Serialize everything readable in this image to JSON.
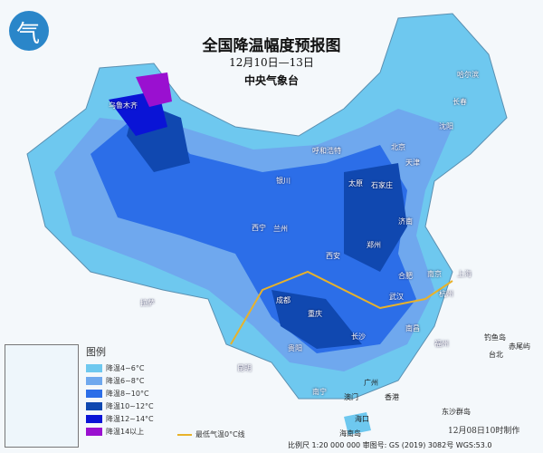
{
  "header": {
    "title": "全国降温幅度预报图",
    "date_range": "12月10日—13日",
    "issuer": "中央气象台"
  },
  "legend": {
    "title": "图例",
    "items": [
      {
        "label": "降温4~6°C",
        "color": "#6ec8ef"
      },
      {
        "label": "降温6~8°C",
        "color": "#6fa8ee"
      },
      {
        "label": "降温8~10°C",
        "color": "#2c6ee8"
      },
      {
        "label": "降温10~12°C",
        "color": "#1048b0"
      },
      {
        "label": "降温12~14°C",
        "color": "#0a14d6"
      },
      {
        "label": "降温14以上",
        "color": "#9a10d0"
      }
    ],
    "zero_line": {
      "label": "最低气温0°C线",
      "color": "#e8b22a"
    }
  },
  "cities": [
    {
      "name": "乌鲁木齐"
    },
    {
      "name": "哈尔滨"
    },
    {
      "name": "长春"
    },
    {
      "name": "沈阳"
    },
    {
      "name": "呼和浩特"
    },
    {
      "name": "北京"
    },
    {
      "name": "天津"
    },
    {
      "name": "石家庄"
    },
    {
      "name": "太原"
    },
    {
      "name": "银川"
    },
    {
      "name": "西宁"
    },
    {
      "name": "兰州"
    },
    {
      "name": "济南"
    },
    {
      "name": "郑州"
    },
    {
      "name": "西安"
    },
    {
      "name": "合肥"
    },
    {
      "name": "南京"
    },
    {
      "name": "上海"
    },
    {
      "name": "成都"
    },
    {
      "name": "重庆"
    },
    {
      "name": "武汉"
    },
    {
      "name": "杭州"
    },
    {
      "name": "拉萨"
    },
    {
      "name": "长沙"
    },
    {
      "name": "南昌"
    },
    {
      "name": "贵阳"
    },
    {
      "name": "福州"
    },
    {
      "name": "昆明"
    },
    {
      "name": "台北"
    },
    {
      "name": "南宁"
    },
    {
      "name": "广州"
    },
    {
      "name": "澳门"
    },
    {
      "name": "香港"
    },
    {
      "name": "海口"
    },
    {
      "name": "钓鱼岛"
    },
    {
      "name": "赤尾屿"
    },
    {
      "name": "东沙群岛"
    },
    {
      "name": "海南岛"
    },
    {
      "name": "南海诸岛"
    }
  ],
  "footer": {
    "made": "12月08日10时制作",
    "scale": "比例尺 1:20 000 000  审图号: GS (2019) 3082号  WGS:53.0"
  }
}
